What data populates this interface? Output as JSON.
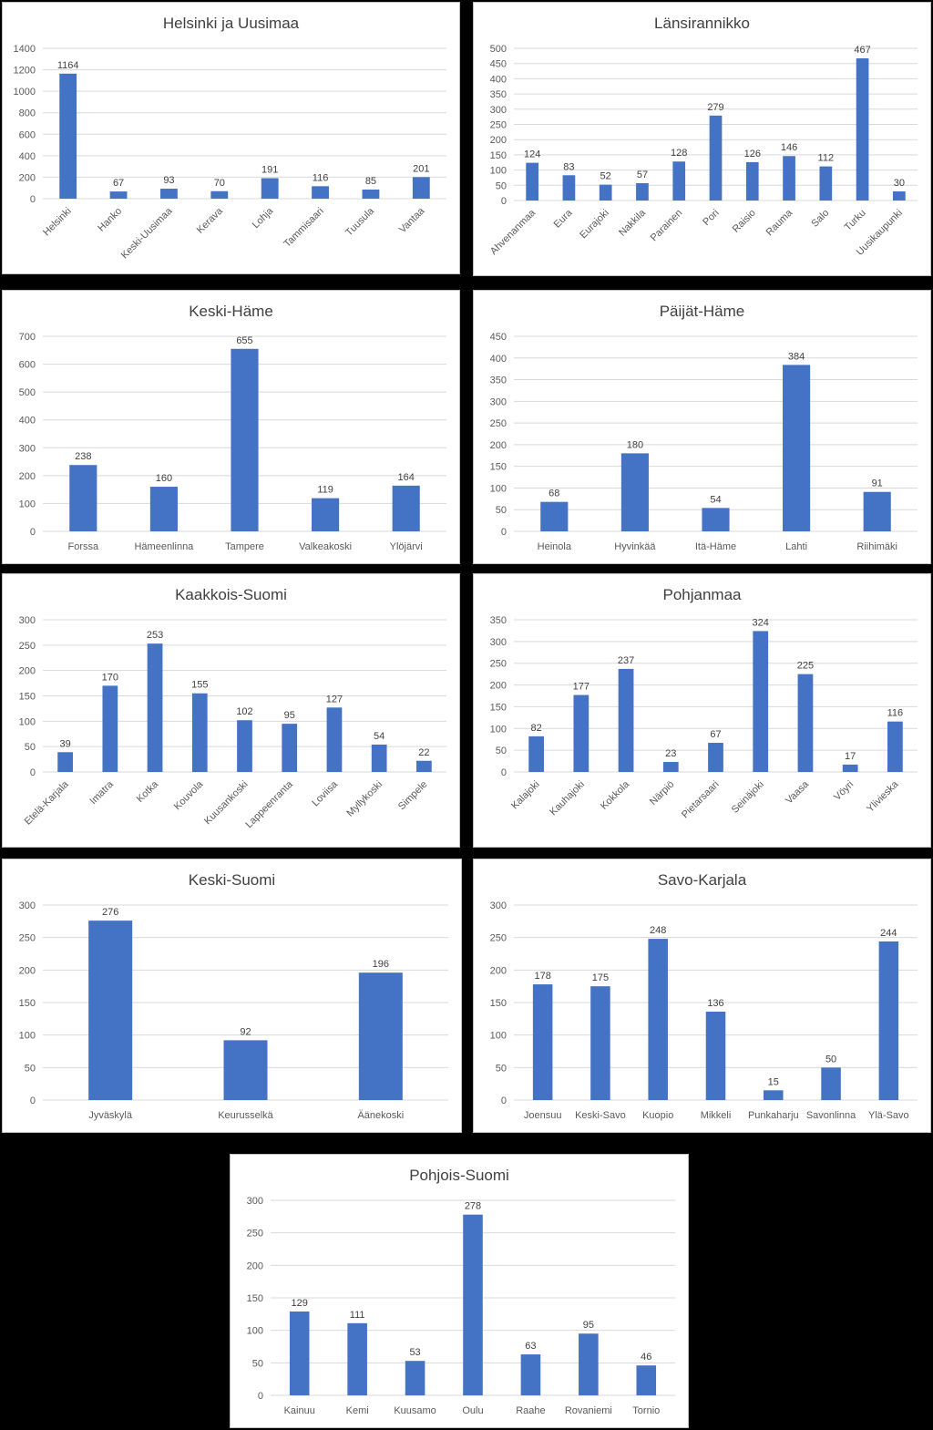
{
  "colors": {
    "bar": "#4472c4",
    "background": "#000000",
    "panel": "#ffffff"
  },
  "chart_data": [
    {
      "type": "bar",
      "title": "Helsinki ja Uusimaa",
      "xlabel": "",
      "ylabel": "",
      "ylim": [
        0,
        1400
      ],
      "yticks": [
        0,
        200,
        400,
        600,
        800,
        1000,
        1200,
        1400
      ],
      "grid": true,
      "rotated_labels": true,
      "categories": [
        "Helsinki",
        "Hanko",
        "Keski-Uusimaa",
        "Kerava",
        "Lohja",
        "Tammisaari",
        "Tuusula",
        "Vantaa"
      ],
      "values": [
        1164,
        67,
        93,
        70,
        191,
        116,
        85,
        201
      ]
    },
    {
      "type": "bar",
      "title": "Länsirannikko",
      "xlabel": "",
      "ylabel": "",
      "ylim": [
        0,
        500
      ],
      "yticks": [
        0,
        50,
        100,
        150,
        200,
        250,
        300,
        350,
        400,
        450,
        500
      ],
      "grid": true,
      "rotated_labels": true,
      "categories": [
        "Ahvenanmaa",
        "Eura",
        "Eurajoki",
        "Nakkila",
        "Parainen",
        "Pori",
        "Raisio",
        "Rauma",
        "Salo",
        "Turku",
        "Uusikaupunki"
      ],
      "values": [
        124,
        83,
        52,
        57,
        128,
        279,
        126,
        146,
        112,
        467,
        30
      ]
    },
    {
      "type": "bar",
      "title": "Keski-Häme",
      "xlabel": "",
      "ylabel": "",
      "ylim": [
        0,
        700
      ],
      "yticks": [
        0,
        100,
        200,
        300,
        400,
        500,
        600,
        700
      ],
      "grid": true,
      "rotated_labels": false,
      "categories": [
        "Forssa",
        "Hämeenlinna",
        "Tampere",
        "Valkeakoski",
        "Ylöjärvi"
      ],
      "values": [
        238,
        160,
        655,
        119,
        164
      ]
    },
    {
      "type": "bar",
      "title": "Päijät-Häme",
      "xlabel": "",
      "ylabel": "",
      "ylim": [
        0,
        450
      ],
      "yticks": [
        0,
        50,
        100,
        150,
        200,
        250,
        300,
        350,
        400,
        450
      ],
      "grid": true,
      "rotated_labels": false,
      "categories": [
        "Heinola",
        "Hyvinkää",
        "Itä-Häme",
        "Lahti",
        "Riihimäki"
      ],
      "values": [
        68,
        180,
        54,
        384,
        91
      ]
    },
    {
      "type": "bar",
      "title": "Kaakkois-Suomi",
      "xlabel": "",
      "ylabel": "",
      "ylim": [
        0,
        300
      ],
      "yticks": [
        0,
        50,
        100,
        150,
        200,
        250,
        300
      ],
      "grid": true,
      "rotated_labels": true,
      "categories": [
        "Etelä-Karjala",
        "Imatra",
        "Kotka",
        "Kouvola",
        "Kuusankoski",
        "Lappeenranta",
        "Loviisa",
        "Myllykoski",
        "Simpele"
      ],
      "values": [
        39,
        170,
        253,
        155,
        102,
        95,
        127,
        54,
        22
      ]
    },
    {
      "type": "bar",
      "title": "Pohjanmaa",
      "xlabel": "",
      "ylabel": "",
      "ylim": [
        0,
        350
      ],
      "yticks": [
        0,
        50,
        100,
        150,
        200,
        250,
        300,
        350
      ],
      "grid": true,
      "rotated_labels": true,
      "categories": [
        "Kalajoki",
        "Kauhajoki",
        "Kokkola",
        "Närpiö",
        "Pietarsaari",
        "Seinäjoki",
        "Vaasa",
        "Vöyri",
        "Ylivieska"
      ],
      "values": [
        82,
        177,
        237,
        23,
        67,
        324,
        225,
        17,
        116
      ]
    },
    {
      "type": "bar",
      "title": "Keski-Suomi",
      "xlabel": "",
      "ylabel": "",
      "ylim": [
        0,
        300
      ],
      "yticks": [
        0,
        50,
        100,
        150,
        200,
        250,
        300
      ],
      "grid": true,
      "rotated_labels": false,
      "categories": [
        "Jyväskylä",
        "Keurusselkä",
        "Äänekoski"
      ],
      "values": [
        276,
        92,
        196
      ]
    },
    {
      "type": "bar",
      "title": "Savo-Karjala",
      "xlabel": "",
      "ylabel": "",
      "ylim": [
        0,
        300
      ],
      "yticks": [
        0,
        50,
        100,
        150,
        200,
        250,
        300
      ],
      "grid": true,
      "rotated_labels": false,
      "categories": [
        "Joensuu",
        "Keski-Savo",
        "Kuopio",
        "Mikkeli",
        "Punkaharju",
        "Savonlinna",
        "Ylä-Savo"
      ],
      "values": [
        178,
        175,
        248,
        136,
        15,
        50,
        244
      ]
    },
    {
      "type": "bar",
      "title": "Pohjois-Suomi",
      "xlabel": "",
      "ylabel": "",
      "ylim": [
        0,
        300
      ],
      "yticks": [
        0,
        50,
        100,
        150,
        200,
        250,
        300
      ],
      "grid": true,
      "rotated_labels": false,
      "categories": [
        "Kainuu",
        "Kemi",
        "Kuusamo",
        "Oulu",
        "Raahe",
        "Rovaniemi",
        "Tornio"
      ],
      "values": [
        129,
        111,
        53,
        278,
        63,
        95,
        46
      ]
    }
  ]
}
